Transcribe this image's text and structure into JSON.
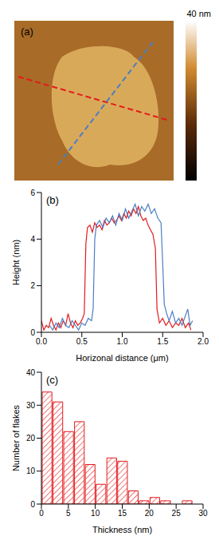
{
  "chart_data": [
    {
      "type": "image",
      "label": "(a)",
      "colorbar_label": "40 nm"
    },
    {
      "type": "line",
      "label": "(b)",
      "x_label": "Horizonal distance (μm)",
      "y_label": "Height (nm)",
      "xlim": [
        0,
        2
      ],
      "xticks": [
        {
          "value": 0,
          "label": "0.0"
        },
        {
          "value": 0.5,
          "label": "0.5"
        },
        {
          "value": 1,
          "label": "1.0"
        },
        {
          "value": 1.5,
          "label": "1.5"
        },
        {
          "value": 2,
          "label": "2.0"
        }
      ],
      "ylim": [
        0,
        6
      ],
      "yticks": [
        0,
        2,
        4,
        6
      ],
      "series": [
        {
          "color": "#e41a1c",
          "x": [
            0.0,
            0.03,
            0.06,
            0.09,
            0.12,
            0.15,
            0.18,
            0.21,
            0.24,
            0.27,
            0.3,
            0.33,
            0.36,
            0.39,
            0.42,
            0.45,
            0.48,
            0.51,
            0.53,
            0.55,
            0.57,
            0.6,
            0.63,
            0.66,
            0.69,
            0.72,
            0.75,
            0.78,
            0.81,
            0.84,
            0.87,
            0.9,
            0.93,
            0.96,
            0.99,
            1.02,
            1.05,
            1.08,
            1.11,
            1.14,
            1.17,
            1.2,
            1.23,
            1.26,
            1.29,
            1.32,
            1.35,
            1.38,
            1.41,
            1.43,
            1.46,
            1.5,
            1.54,
            1.58,
            1.62,
            1.66,
            1.7,
            1.74,
            1.78,
            1.82,
            1.85
          ],
          "values": [
            0.5,
            0.1,
            0.3,
            0.2,
            0.6,
            0.3,
            0.1,
            0.4,
            0.2,
            0.5,
            0.3,
            0.8,
            0.4,
            0.2,
            0.5,
            0.3,
            0.4,
            0.6,
            0.8,
            3.8,
            4.5,
            4.6,
            4.3,
            4.7,
            4.5,
            4.6,
            4.4,
            4.8,
            4.6,
            4.7,
            4.9,
            4.7,
            4.8,
            5.0,
            4.8,
            5.1,
            4.9,
            5.2,
            5.0,
            5.3,
            5.1,
            5.4,
            5.0,
            4.8,
            4.9,
            4.6,
            4.4,
            4.2,
            3.6,
            1.0,
            0.4,
            0.6,
            0.3,
            0.5,
            0.2,
            0.4,
            0.3,
            0.6,
            0.2,
            0.4,
            0.1
          ]
        },
        {
          "color": "#4a7fc1",
          "x": [
            0.1,
            0.14,
            0.18,
            0.22,
            0.26,
            0.3,
            0.34,
            0.38,
            0.42,
            0.46,
            0.5,
            0.54,
            0.58,
            0.62,
            0.64,
            0.66,
            0.68,
            0.72,
            0.76,
            0.8,
            0.84,
            0.88,
            0.92,
            0.96,
            1.0,
            1.04,
            1.08,
            1.12,
            1.16,
            1.2,
            1.24,
            1.28,
            1.32,
            1.36,
            1.4,
            1.44,
            1.48,
            1.5,
            1.52,
            1.55,
            1.58,
            1.62,
            1.66,
            1.7,
            1.74,
            1.78,
            1.81,
            1.84,
            1.87
          ],
          "values": [
            0.3,
            0.1,
            0.4,
            0.2,
            0.6,
            0.3,
            0.2,
            0.5,
            0.3,
            0.1,
            0.4,
            0.3,
            0.6,
            0.5,
            1.0,
            4.0,
            4.6,
            4.8,
            4.5,
            4.9,
            4.7,
            5.0,
            4.6,
            5.1,
            4.8,
            5.3,
            4.9,
            5.2,
            5.5,
            5.0,
            5.4,
            5.2,
            5.5,
            5.1,
            5.3,
            4.9,
            4.7,
            3.0,
            1.2,
            0.8,
            0.5,
            0.9,
            0.4,
            0.6,
            0.3,
            0.7,
            1.0,
            0.3,
            0.5
          ]
        }
      ]
    },
    {
      "type": "histogram",
      "label": "(c)",
      "x_label": "Thickness (nm)",
      "y_label": "Number of flakes",
      "bins": [
        0,
        2,
        4,
        6,
        8,
        10,
        12,
        14,
        16,
        18,
        20,
        22,
        24,
        26,
        28
      ],
      "counts": [
        34,
        31,
        22,
        25,
        12,
        6,
        14,
        13,
        4,
        1,
        2,
        1,
        0,
        1
      ],
      "color": "#e41a1c",
      "xlim": [
        0,
        30
      ],
      "xticks": [
        0,
        5,
        10,
        15,
        20,
        25,
        30
      ],
      "ylim": [
        0,
        40
      ],
      "yticks": [
        0,
        10,
        20,
        30,
        40
      ]
    }
  ]
}
